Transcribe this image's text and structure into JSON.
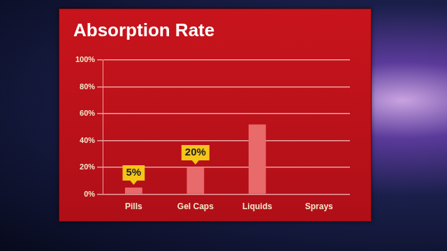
{
  "chart_data": {
    "type": "bar",
    "title": "Absorption Rate",
    "categories": [
      "Pills",
      "Gel Caps",
      "Liquids",
      "Sprays"
    ],
    "values": [
      5,
      20,
      52,
      null
    ],
    "value_labels": [
      "5%",
      "20%",
      null,
      null
    ],
    "data_labels": true,
    "color": "#e86a6a",
    "ylim": [
      0,
      100
    ],
    "yticks": [
      {
        "value": 0,
        "label": "0%"
      },
      {
        "value": 20,
        "label": "20%"
      },
      {
        "value": 40,
        "label": "40%"
      },
      {
        "value": 60,
        "label": "60%"
      },
      {
        "value": 80,
        "label": "80%"
      },
      {
        "value": 100,
        "label": "100%"
      }
    ],
    "grid": true
  }
}
